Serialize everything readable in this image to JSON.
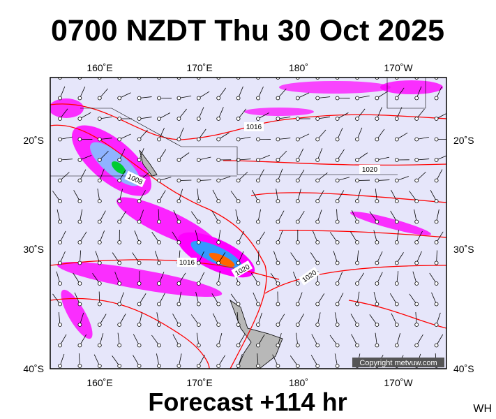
{
  "header": {
    "title": "0700 NZDT Thu 30 Oct 2025"
  },
  "map": {
    "top_labels": [
      "160˚E",
      "170˚E",
      "180˚",
      "170˚W"
    ],
    "bottom_labels": [
      "160˚E",
      "170˚E",
      "180˚",
      "170˚W"
    ],
    "left_labels": [
      "20˚S",
      "30˚S",
      "40˚S"
    ],
    "right_labels": [
      "20˚S",
      "30˚S",
      "40˚S"
    ],
    "contour_labels": [
      "1016",
      "1008",
      "1020",
      "1016",
      "1020",
      "1020"
    ],
    "copyright": "Copyright metvuw.com"
  },
  "footer": {
    "forecast": "Forecast +114 hr",
    "initials": "WH"
  }
}
